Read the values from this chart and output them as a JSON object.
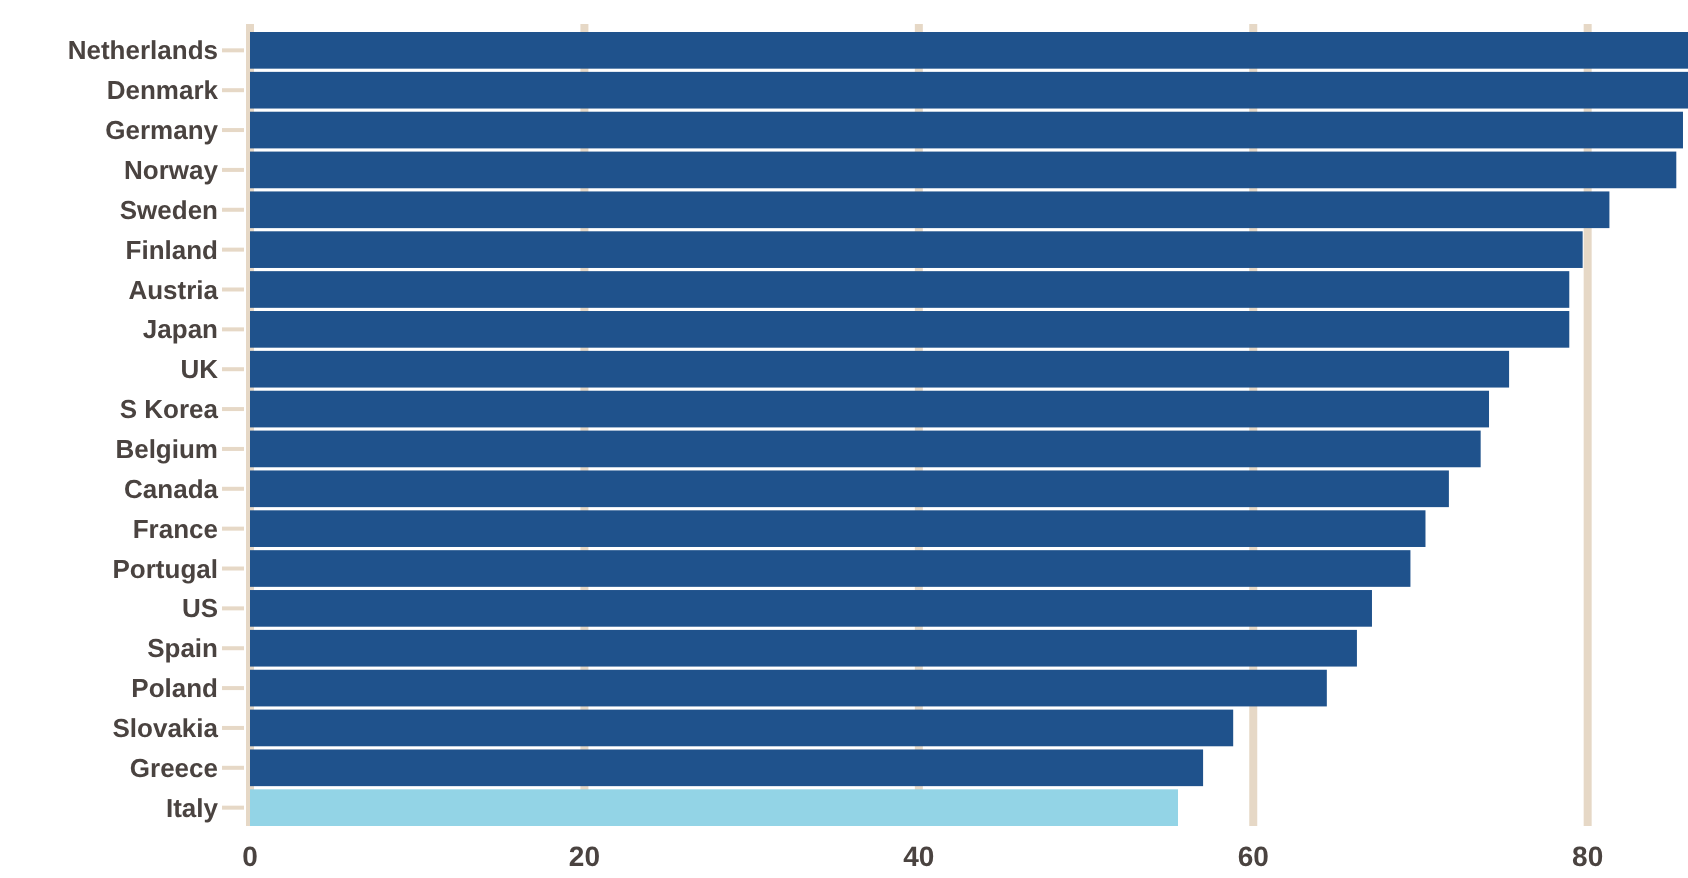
{
  "chart_data": {
    "type": "bar",
    "orientation": "horizontal",
    "categories": [
      "Netherlands",
      "Denmark",
      "Germany",
      "Norway",
      "Sweden",
      "Finland",
      "Austria",
      "Japan",
      "UK",
      "S Korea",
      "Belgium",
      "Canada",
      "France",
      "Portugal",
      "US",
      "Spain",
      "Poland",
      "Slovakia",
      "Greece",
      "Italy"
    ],
    "values": [
      86,
      86,
      85.7,
      85.3,
      81.3,
      79.7,
      78.9,
      78.9,
      75.3,
      74.1,
      73.6,
      71.7,
      70.3,
      69.4,
      67.1,
      66.2,
      64.4,
      58.8,
      57.0,
      55.5
    ],
    "colors": [
      "#1f528c",
      "#1f528c",
      "#1f528c",
      "#1f528c",
      "#1f528c",
      "#1f528c",
      "#1f528c",
      "#1f528c",
      "#1f528c",
      "#1f528c",
      "#1f528c",
      "#1f528c",
      "#1f528c",
      "#1f528c",
      "#1f528c",
      "#1f528c",
      "#1f528c",
      "#1f528c",
      "#1f528c",
      "#93d4e6"
    ],
    "xlim": [
      0,
      86
    ],
    "xticks": [
      0,
      20,
      40,
      60,
      80
    ],
    "grid": "x"
  }
}
